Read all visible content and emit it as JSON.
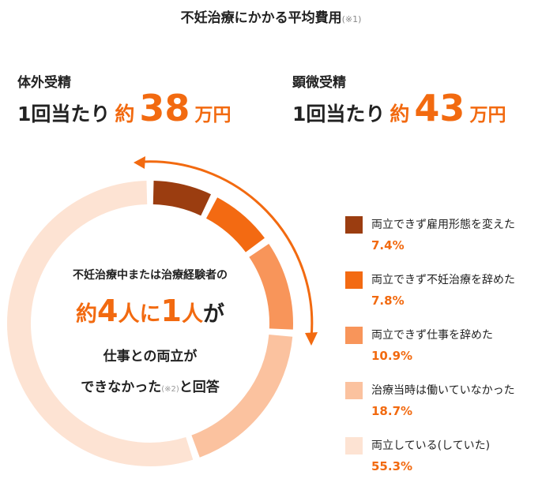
{
  "header": {
    "title": "不妊治療にかかる平均費用",
    "note": "(※1)"
  },
  "costs": [
    {
      "label": "体外受精",
      "prefix": "1回当たり",
      "approx": "約",
      "amount": 38,
      "unit": "万円"
    },
    {
      "label": "顕微受精",
      "prefix": "1回当たり",
      "approx": "約",
      "amount": 43,
      "unit": "万円"
    }
  ],
  "chart_data": {
    "type": "donut",
    "center": {
      "line1": "不妊治療中または治療経験者の",
      "approx": "約",
      "num1": 4,
      "mid": "人に",
      "num2": 1,
      "person": "人",
      "ga": "が",
      "line3": "仕事との両立が",
      "line4a": "できなかった",
      "note": "(※2)",
      "line4b": "と回答"
    },
    "categories": [
      "両立できず雇用形態を変えた",
      "両立できず不妊治療を辞めた",
      "両立できず仕事を辞めた",
      "治療当時は働いていなかった",
      "両立している(していた)"
    ],
    "values": [
      7.4,
      7.8,
      10.9,
      18.7,
      55.3
    ],
    "value_labels": [
      "7.4%",
      "7.8%",
      "10.9%",
      "18.7%",
      "55.3%"
    ],
    "colors": [
      "#9b3d10",
      "#f36a12",
      "#f8955a",
      "#fbc29f",
      "#fde3d3"
    ]
  }
}
